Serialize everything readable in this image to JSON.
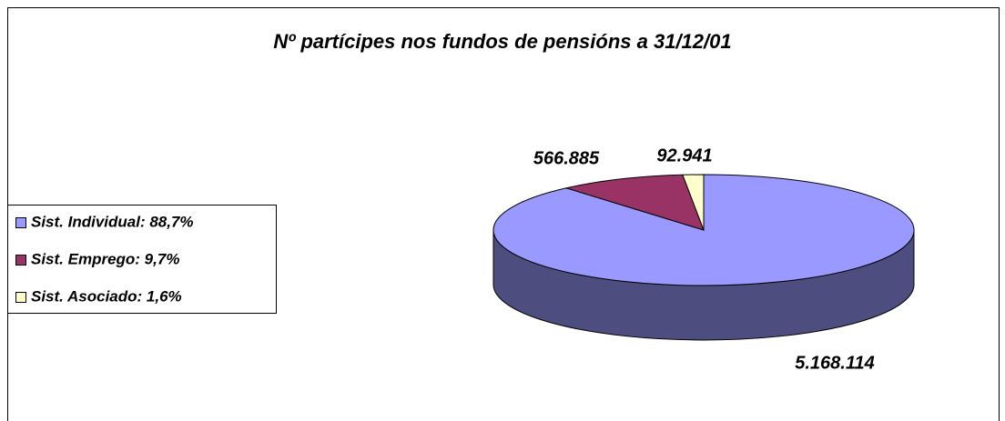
{
  "chart_data": {
    "type": "pie",
    "title": "Nº partícipes nos fundos de pensións a 31/12/01",
    "categories": [
      "Sist. Individual: 88,7%",
      "Sist. Emprego:  9,7%",
      "Sist. Asociado: 1,6%"
    ],
    "values": [
      5168114,
      566885,
      92941
    ],
    "value_labels": [
      "5.168.114",
      "566.885",
      "92.941"
    ],
    "colors": [
      "#9999ff",
      "#993366",
      "#ffffcc"
    ],
    "legend": "left"
  }
}
